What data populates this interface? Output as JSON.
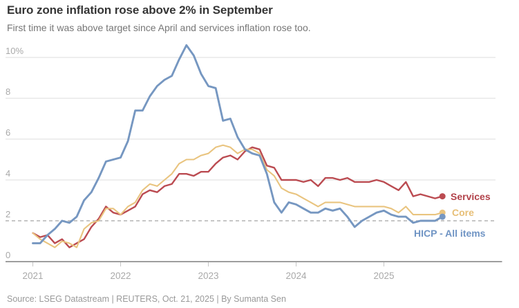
{
  "header": {
    "title": "Euro zone inflation rose above 2% in September",
    "subtitle": "First time it was above target since April and services inflation rose too."
  },
  "chart_data": {
    "type": "line",
    "title": "Euro zone inflation rose above 2% in September",
    "unit": "percent, year-on-year",
    "frequency": "monthly",
    "x_range": [
      "2021-01",
      "2025-09"
    ],
    "x_tick_labels": [
      "2021",
      "2022",
      "2023",
      "2024",
      "2025"
    ],
    "y_ticks": [
      0,
      2,
      4,
      6,
      8,
      10
    ],
    "y_tick_labels": [
      "0",
      "2",
      "4",
      "6",
      "8",
      "10%"
    ],
    "ylim": [
      0,
      10.8
    ],
    "target_line_y": 2,
    "grid": true,
    "legend_position": "end-of-line-labels",
    "colors": {
      "grid": "#e9e9e9",
      "target_dash": "#b3b3b3",
      "axis": "#9e9e9e",
      "tick": "#c6c6c6",
      "tick_label": "#a9a9a9"
    },
    "series": [
      {
        "name": "Services",
        "color": "#bb4b51",
        "label_color": "#b2424a",
        "values": [
          1.4,
          1.2,
          1.3,
          0.9,
          1.1,
          0.7,
          0.9,
          1.1,
          1.7,
          2.1,
          2.7,
          2.4,
          2.3,
          2.5,
          2.7,
          3.3,
          3.5,
          3.4,
          3.7,
          3.8,
          4.3,
          4.3,
          4.2,
          4.4,
          4.4,
          4.8,
          5.1,
          5.2,
          5.0,
          5.4,
          5.6,
          5.5,
          4.7,
          4.6,
          4.0,
          4.0,
          4.0,
          3.9,
          4.0,
          3.7,
          4.1,
          4.1,
          4.0,
          4.1,
          3.9,
          3.9,
          3.9,
          4.0,
          3.9,
          3.7,
          3.5,
          3.9,
          3.2,
          3.3,
          3.2,
          3.1,
          3.2
        ]
      },
      {
        "name": "Core",
        "color": "#e9c47f",
        "label_color": "#e7bf77",
        "values": [
          1.4,
          1.1,
          0.9,
          0.7,
          1.0,
          0.9,
          0.7,
          1.6,
          1.9,
          2.0,
          2.6,
          2.6,
          2.3,
          2.7,
          2.9,
          3.5,
          3.8,
          3.7,
          4.0,
          4.3,
          4.8,
          5.0,
          5.0,
          5.2,
          5.3,
          5.6,
          5.7,
          5.6,
          5.3,
          5.5,
          5.5,
          5.3,
          4.5,
          4.2,
          3.6,
          3.4,
          3.3,
          3.1,
          2.9,
          2.7,
          2.9,
          2.9,
          2.9,
          2.8,
          2.7,
          2.7,
          2.7,
          2.7,
          2.7,
          2.6,
          2.4,
          2.7,
          2.3,
          2.3,
          2.3,
          2.3,
          2.4
        ]
      },
      {
        "name": "HICP - All items",
        "color": "#7697c1",
        "label_color": "#6f94c4",
        "values": [
          0.9,
          0.9,
          1.3,
          1.6,
          2.0,
          1.9,
          2.2,
          3.0,
          3.4,
          4.1,
          4.9,
          5.0,
          5.1,
          5.9,
          7.4,
          7.4,
          8.1,
          8.6,
          8.9,
          9.1,
          9.9,
          10.6,
          10.1,
          9.2,
          8.6,
          8.5,
          6.9,
          7.0,
          6.1,
          5.5,
          5.3,
          5.2,
          4.3,
          2.9,
          2.4,
          2.9,
          2.8,
          2.6,
          2.4,
          2.4,
          2.6,
          2.5,
          2.6,
          2.2,
          1.7,
          2.0,
          2.2,
          2.4,
          2.5,
          2.3,
          2.2,
          2.2,
          1.9,
          2.0,
          2.0,
          2.0,
          2.2
        ]
      }
    ]
  },
  "footer": {
    "source": "Source: LSEG Datastream | REUTERS, Oct. 21, 2025 | By Sumanta Sen"
  }
}
